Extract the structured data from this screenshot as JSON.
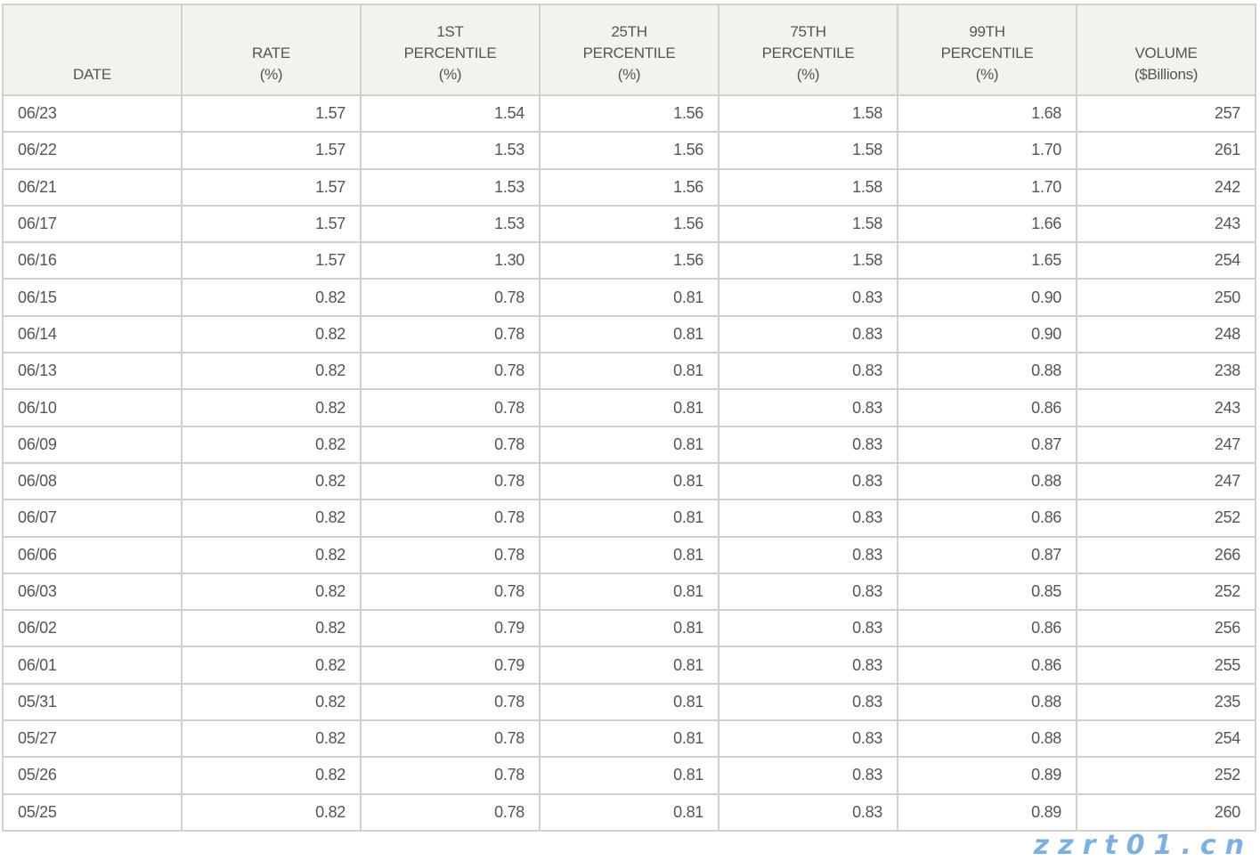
{
  "table": {
    "headers": [
      [
        "DATE"
      ],
      [
        "RATE",
        "(%)"
      ],
      [
        "1ST",
        "PERCENTILE",
        "(%)"
      ],
      [
        "25TH",
        "PERCENTILE",
        "(%)"
      ],
      [
        "75TH",
        "PERCENTILE",
        "(%)"
      ],
      [
        "99TH",
        "PERCENTILE",
        "(%)"
      ],
      [
        "VOLUME",
        "($Billions)"
      ]
    ],
    "rows": [
      [
        "06/23",
        "1.57",
        "1.54",
        "1.56",
        "1.58",
        "1.68",
        "257"
      ],
      [
        "06/22",
        "1.57",
        "1.53",
        "1.56",
        "1.58",
        "1.70",
        "261"
      ],
      [
        "06/21",
        "1.57",
        "1.53",
        "1.56",
        "1.58",
        "1.70",
        "242"
      ],
      [
        "06/17",
        "1.57",
        "1.53",
        "1.56",
        "1.58",
        "1.66",
        "243"
      ],
      [
        "06/16",
        "1.57",
        "1.30",
        "1.56",
        "1.58",
        "1.65",
        "254"
      ],
      [
        "06/15",
        "0.82",
        "0.78",
        "0.81",
        "0.83",
        "0.90",
        "250"
      ],
      [
        "06/14",
        "0.82",
        "0.78",
        "0.81",
        "0.83",
        "0.90",
        "248"
      ],
      [
        "06/13",
        "0.82",
        "0.78",
        "0.81",
        "0.83",
        "0.88",
        "238"
      ],
      [
        "06/10",
        "0.82",
        "0.78",
        "0.81",
        "0.83",
        "0.86",
        "243"
      ],
      [
        "06/09",
        "0.82",
        "0.78",
        "0.81",
        "0.83",
        "0.87",
        "247"
      ],
      [
        "06/08",
        "0.82",
        "0.78",
        "0.81",
        "0.83",
        "0.88",
        "247"
      ],
      [
        "06/07",
        "0.82",
        "0.78",
        "0.81",
        "0.83",
        "0.86",
        "252"
      ],
      [
        "06/06",
        "0.82",
        "0.78",
        "0.81",
        "0.83",
        "0.87",
        "266"
      ],
      [
        "06/03",
        "0.82",
        "0.78",
        "0.81",
        "0.83",
        "0.85",
        "252"
      ],
      [
        "06/02",
        "0.82",
        "0.79",
        "0.81",
        "0.83",
        "0.86",
        "256"
      ],
      [
        "06/01",
        "0.82",
        "0.79",
        "0.81",
        "0.83",
        "0.86",
        "255"
      ],
      [
        "05/31",
        "0.82",
        "0.78",
        "0.81",
        "0.83",
        "0.88",
        "235"
      ],
      [
        "05/27",
        "0.82",
        "0.78",
        "0.81",
        "0.83",
        "0.88",
        "254"
      ],
      [
        "05/26",
        "0.82",
        "0.78",
        "0.81",
        "0.83",
        "0.89",
        "252"
      ],
      [
        "05/25",
        "0.82",
        "0.78",
        "0.81",
        "0.83",
        "0.89",
        "260"
      ]
    ]
  },
  "watermark": "zzrt01.cn"
}
